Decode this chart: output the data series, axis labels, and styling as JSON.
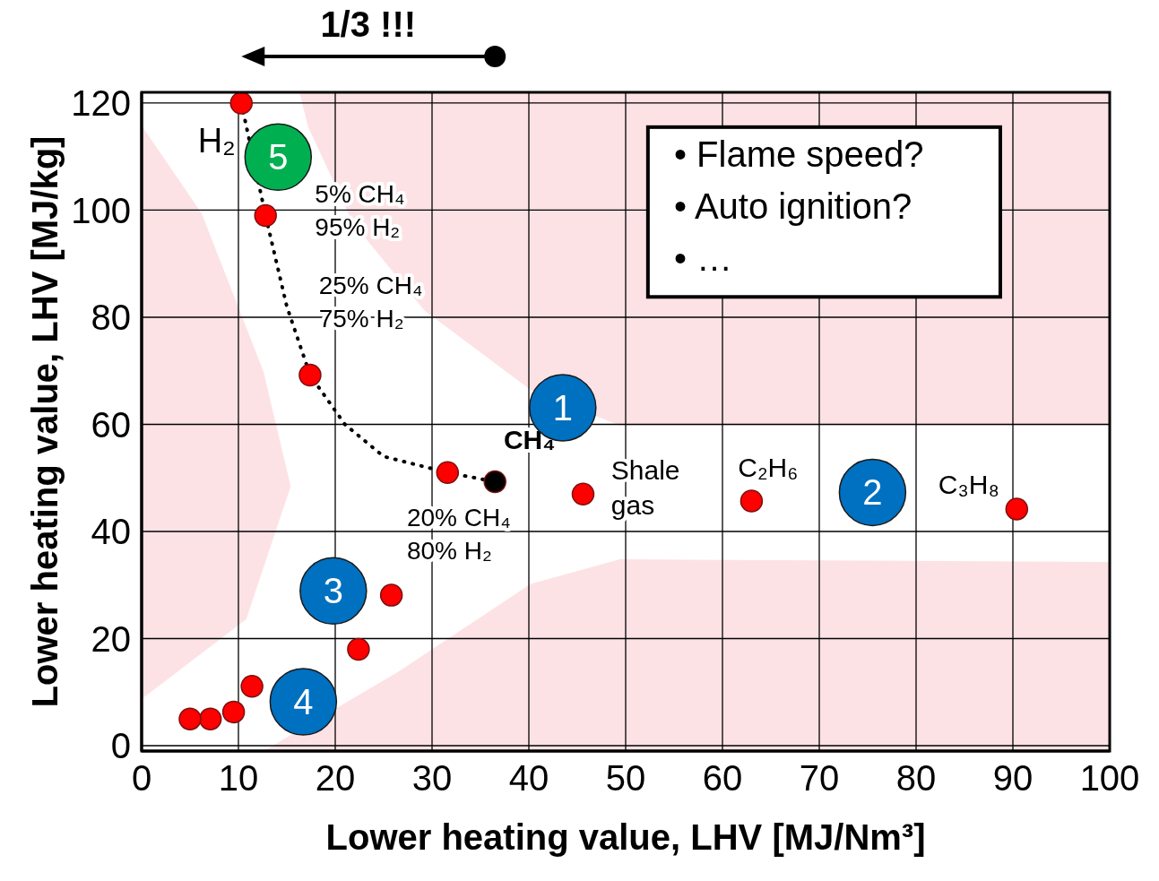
{
  "chart_data": {
    "type": "scatter",
    "xlabel": "Lower heating value, LHV [MJ/Nm³]",
    "ylabel": "Lower heating value, LHV [MJ/kg]",
    "xlim": [
      0,
      100
    ],
    "xticks": [
      0,
      10,
      20,
      30,
      40,
      50,
      60,
      70,
      80,
      90,
      100
    ],
    "ylim": [
      -1,
      122
    ],
    "yticks": [
      0,
      20,
      40,
      60,
      80,
      100,
      120
    ],
    "grid": true,
    "marker": "circle",
    "series": [
      {
        "type": "line",
        "color": "#000000",
        "line_style": "dotted",
        "marker": "none",
        "x": [
          10.3,
          12.8,
          15,
          17.4,
          21,
          25,
          31.6,
          36.5
        ],
        "values": [
          120,
          99,
          82,
          69.2,
          60,
          54,
          51,
          49.3
        ]
      },
      {
        "color": "#ff0000",
        "x": [
          10.3,
          12.8,
          17.4,
          31.6,
          45.6,
          63,
          90.4,
          25.8,
          22.4,
          11.4,
          9.5,
          7.1,
          5
        ],
        "values": [
          120,
          99,
          69.2,
          51,
          47,
          45.7,
          44.2,
          28.1,
          18,
          11.1,
          6.3,
          5,
          5
        ]
      },
      {
        "color": "#000000",
        "x": [
          36.5
        ],
        "values": [
          49.3
        ]
      }
    ],
    "annotations": [
      "1/3 !!!",
      "• Flame speed?",
      "• Auto ignition?",
      "• …",
      "H₂",
      "CH₄",
      "5% CH₄\n95% H₂",
      "25% CH₄\n75% H₂",
      "20% CH₄\n80% H₂",
      "Shale\ngas",
      "C₂H₆",
      "C₃H₈",
      "1",
      "2",
      "3",
      "4",
      "5"
    ]
  }
}
